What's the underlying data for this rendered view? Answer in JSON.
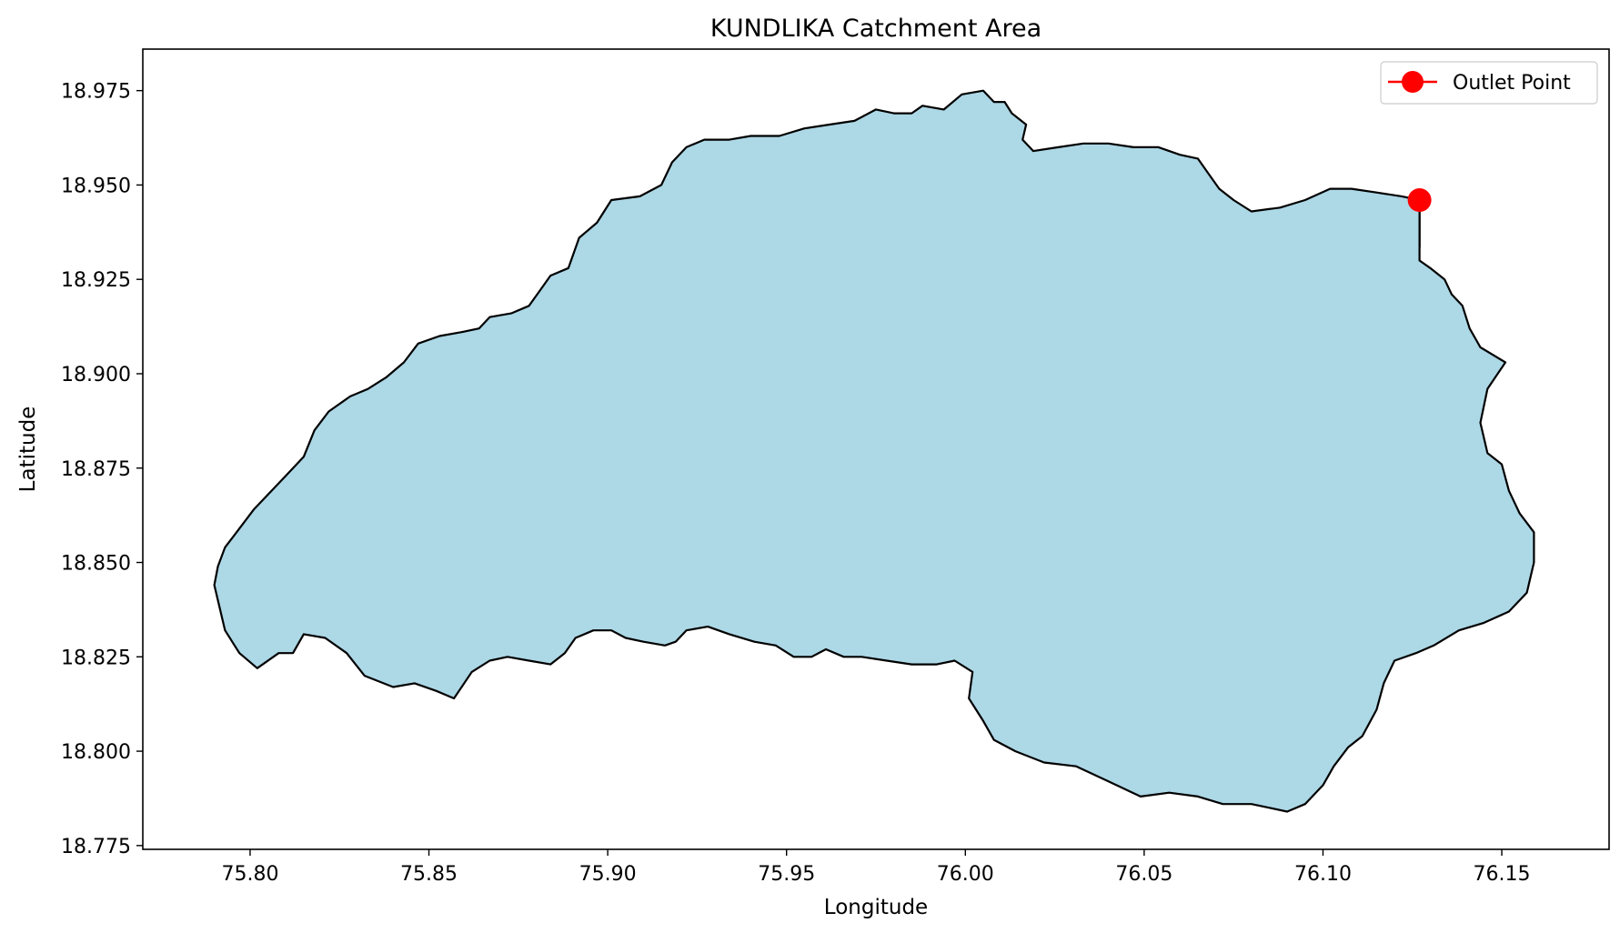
{
  "chart_data": {
    "type": "map",
    "title": "KUNDLIKA Catchment Area",
    "xlabel": "Longitude",
    "ylabel": "Latitude",
    "xlim": [
      75.77,
      76.18
    ],
    "ylim": [
      18.774,
      18.986
    ],
    "xticks": [
      "75.80",
      "75.85",
      "75.90",
      "75.95",
      "76.00",
      "76.05",
      "76.10",
      "76.15"
    ],
    "yticks": [
      "18.775",
      "18.800",
      "18.825",
      "18.850",
      "18.875",
      "18.900",
      "18.925",
      "18.950",
      "18.975"
    ],
    "grid": false,
    "legend": {
      "placement": "top-right",
      "entries": [
        {
          "label": "Outlet Point",
          "color": "#ff0000",
          "marker": "circle"
        }
      ]
    },
    "catchment": {
      "fill": "#add8e6",
      "edge": "#000000",
      "boundary": [
        [
          75.79,
          18.844
        ],
        [
          75.793,
          18.832
        ],
        [
          75.797,
          18.826
        ],
        [
          75.802,
          18.822
        ],
        [
          75.808,
          18.826
        ],
        [
          75.812,
          18.826
        ],
        [
          75.815,
          18.831
        ],
        [
          75.821,
          18.83
        ],
        [
          75.827,
          18.826
        ],
        [
          75.832,
          18.82
        ],
        [
          75.84,
          18.817
        ],
        [
          75.846,
          18.818
        ],
        [
          75.852,
          18.816
        ],
        [
          75.857,
          18.814
        ],
        [
          75.862,
          18.821
        ],
        [
          75.867,
          18.824
        ],
        [
          75.872,
          18.825
        ],
        [
          75.878,
          18.824
        ],
        [
          75.884,
          18.823
        ],
        [
          75.888,
          18.826
        ],
        [
          75.891,
          18.83
        ],
        [
          75.896,
          18.832
        ],
        [
          75.901,
          18.832
        ],
        [
          75.905,
          18.83
        ],
        [
          75.91,
          18.829
        ],
        [
          75.916,
          18.828
        ],
        [
          75.919,
          18.829
        ],
        [
          75.922,
          18.832
        ],
        [
          75.928,
          18.833
        ],
        [
          75.934,
          18.831
        ],
        [
          75.941,
          18.829
        ],
        [
          75.947,
          18.828
        ],
        [
          75.952,
          18.825
        ],
        [
          75.957,
          18.825
        ],
        [
          75.961,
          18.827
        ],
        [
          75.966,
          18.825
        ],
        [
          75.971,
          18.825
        ],
        [
          75.978,
          18.824
        ],
        [
          75.985,
          18.823
        ],
        [
          75.992,
          18.823
        ],
        [
          75.997,
          18.824
        ],
        [
          76.002,
          18.821
        ],
        [
          76.001,
          18.814
        ],
        [
          76.005,
          18.808
        ],
        [
          76.008,
          18.803
        ],
        [
          76.014,
          18.8
        ],
        [
          76.022,
          18.797
        ],
        [
          76.031,
          18.796
        ],
        [
          76.04,
          18.792
        ],
        [
          76.049,
          18.788
        ],
        [
          76.057,
          18.789
        ],
        [
          76.065,
          18.788
        ],
        [
          76.072,
          18.786
        ],
        [
          76.08,
          18.786
        ],
        [
          76.085,
          18.785
        ],
        [
          76.09,
          18.784
        ],
        [
          76.095,
          18.786
        ],
        [
          76.1,
          18.791
        ],
        [
          76.103,
          18.796
        ],
        [
          76.107,
          18.801
        ],
        [
          76.111,
          18.804
        ],
        [
          76.115,
          18.811
        ],
        [
          76.117,
          18.818
        ],
        [
          76.12,
          18.824
        ],
        [
          76.126,
          18.826
        ],
        [
          76.131,
          18.828
        ],
        [
          76.138,
          18.832
        ],
        [
          76.145,
          18.834
        ],
        [
          76.152,
          18.837
        ],
        [
          76.157,
          18.842
        ],
        [
          76.159,
          18.85
        ],
        [
          76.159,
          18.858
        ],
        [
          76.155,
          18.863
        ],
        [
          76.152,
          18.869
        ],
        [
          76.15,
          18.876
        ],
        [
          76.146,
          18.879
        ],
        [
          76.144,
          18.887
        ],
        [
          76.146,
          18.896
        ],
        [
          76.151,
          18.903
        ],
        [
          76.144,
          18.907
        ],
        [
          76.141,
          18.912
        ],
        [
          76.139,
          18.918
        ],
        [
          76.136,
          18.921
        ],
        [
          76.134,
          18.925
        ],
        [
          76.13,
          18.928
        ],
        [
          76.127,
          18.93
        ],
        [
          76.127,
          18.946
        ],
        [
          76.122,
          18.947
        ],
        [
          76.115,
          18.948
        ],
        [
          76.108,
          18.949
        ],
        [
          76.102,
          18.949
        ],
        [
          76.095,
          18.946
        ],
        [
          76.088,
          18.944
        ],
        [
          76.08,
          18.943
        ],
        [
          76.075,
          18.946
        ],
        [
          76.071,
          18.949
        ],
        [
          76.068,
          18.953
        ],
        [
          76.065,
          18.957
        ],
        [
          76.06,
          18.958
        ],
        [
          76.054,
          18.96
        ],
        [
          76.047,
          18.96
        ],
        [
          76.04,
          18.961
        ],
        [
          76.033,
          18.961
        ],
        [
          76.026,
          18.96
        ],
        [
          76.019,
          18.959
        ],
        [
          76.016,
          18.962
        ],
        [
          76.017,
          18.966
        ],
        [
          76.013,
          18.969
        ],
        [
          76.011,
          18.972
        ],
        [
          76.008,
          18.972
        ],
        [
          76.005,
          18.975
        ],
        [
          75.999,
          18.974
        ],
        [
          75.994,
          18.97
        ],
        [
          75.988,
          18.971
        ],
        [
          75.985,
          18.969
        ],
        [
          75.98,
          18.969
        ],
        [
          75.975,
          18.97
        ],
        [
          75.969,
          18.967
        ],
        [
          75.962,
          18.966
        ],
        [
          75.955,
          18.965
        ],
        [
          75.948,
          18.963
        ],
        [
          75.94,
          18.963
        ],
        [
          75.934,
          18.962
        ],
        [
          75.927,
          18.962
        ],
        [
          75.922,
          18.96
        ],
        [
          75.918,
          18.956
        ],
        [
          75.915,
          18.95
        ],
        [
          75.909,
          18.947
        ],
        [
          75.901,
          18.946
        ],
        [
          75.897,
          18.94
        ],
        [
          75.892,
          18.936
        ],
        [
          75.889,
          18.928
        ],
        [
          75.884,
          18.926
        ],
        [
          75.881,
          18.922
        ],
        [
          75.878,
          18.918
        ],
        [
          75.873,
          18.916
        ],
        [
          75.867,
          18.915
        ],
        [
          75.864,
          18.912
        ],
        [
          75.859,
          18.911
        ],
        [
          75.853,
          18.91
        ],
        [
          75.847,
          18.908
        ],
        [
          75.843,
          18.903
        ],
        [
          75.838,
          18.899
        ],
        [
          75.833,
          18.896
        ],
        [
          75.828,
          18.894
        ],
        [
          75.822,
          18.89
        ],
        [
          75.818,
          18.885
        ],
        [
          75.815,
          18.878
        ],
        [
          75.81,
          18.873
        ],
        [
          75.806,
          18.869
        ],
        [
          75.801,
          18.864
        ],
        [
          75.797,
          18.859
        ],
        [
          75.793,
          18.854
        ],
        [
          75.791,
          18.849
        ]
      ]
    },
    "outlet_point": {
      "lon": 76.127,
      "lat": 18.946,
      "color": "#ff0000"
    }
  }
}
